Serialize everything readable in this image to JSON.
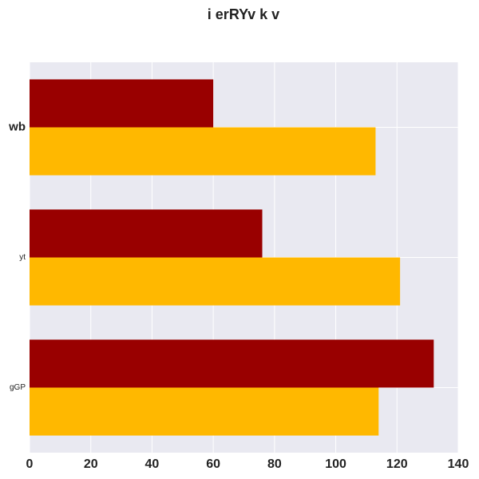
{
  "chart_data": {
    "type": "bar",
    "orientation": "horizontal",
    "title": "i erRYv k v",
    "xlabel": "",
    "ylabel": "",
    "categories": [
      "wb",
      "yt",
      "gGP"
    ],
    "series": [
      {
        "values": [
          60,
          76,
          132
        ],
        "color": "#990000"
      },
      {
        "values": [
          113,
          121,
          114
        ],
        "color": "#ffb800"
      }
    ],
    "xlim": [
      0,
      140
    ],
    "xticks": [
      0,
      20,
      40,
      60,
      80,
      100,
      120,
      140
    ],
    "grid": true,
    "background": "#e9e9f1"
  }
}
